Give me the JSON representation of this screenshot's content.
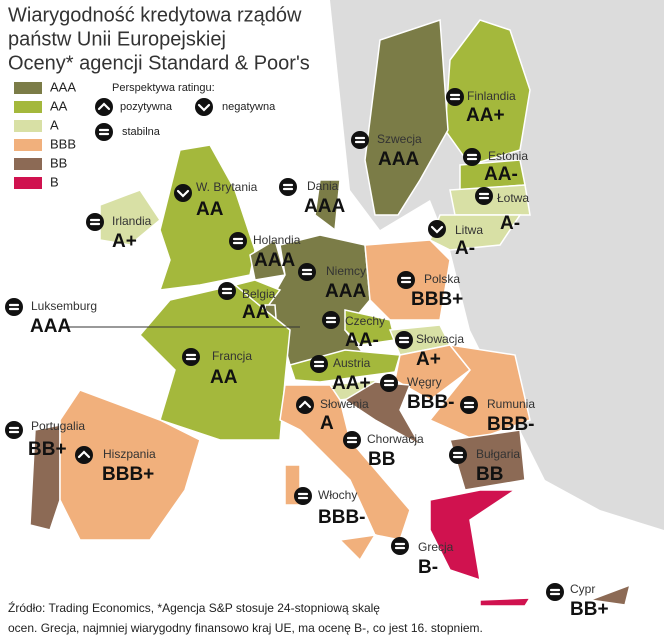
{
  "header": {
    "title": [
      "Wiarygodność kredytowa rządów",
      "państw Unii Europejskiej",
      "Oceny* agencji Standard & Poor's"
    ]
  },
  "legend": {
    "ratings": [
      {
        "label": "AAA",
        "color": "#7b7c47"
      },
      {
        "label": "AA",
        "color": "#a4b83c"
      },
      {
        "label": "A",
        "color": "#d8e0a5"
      },
      {
        "label": "BBB",
        "color": "#f1b07c"
      },
      {
        "label": "BB",
        "color": "#8c6a55"
      },
      {
        "label": "B",
        "color": "#d0124f"
      }
    ],
    "outlook": {
      "title": "Perspektywa ratingu:",
      "positive": "pozytywna",
      "negative": "negatywna",
      "stable": "stabilna"
    }
  },
  "countries": [
    {
      "name": "Finlandia",
      "rating": "AA+",
      "outlook": "stable"
    },
    {
      "name": "Szwecja",
      "rating": "AAA",
      "outlook": "stable"
    },
    {
      "name": "Estonia",
      "rating": "AA-",
      "outlook": "stable"
    },
    {
      "name": "Łotwa",
      "rating": "A-",
      "outlook": "stable"
    },
    {
      "name": "Litwa",
      "rating": "A-",
      "outlook": "negative"
    },
    {
      "name": "Irlandia",
      "rating": "A+",
      "outlook": "stable"
    },
    {
      "name": "W. Brytania",
      "rating": "AA",
      "outlook": "negative"
    },
    {
      "name": "Dania",
      "rating": "AAA",
      "outlook": "stable"
    },
    {
      "name": "Holandia",
      "rating": "AAA",
      "outlook": "stable"
    },
    {
      "name": "Niemcy",
      "rating": "AAA",
      "outlook": "stable"
    },
    {
      "name": "Polska",
      "rating": "BBB+",
      "outlook": "stable"
    },
    {
      "name": "Belgia",
      "rating": "AA",
      "outlook": "stable"
    },
    {
      "name": "Luksemburg",
      "rating": "AAA",
      "outlook": "stable"
    },
    {
      "name": "Czechy",
      "rating": "AA-",
      "outlook": "stable"
    },
    {
      "name": "Słowacja",
      "rating": "A+",
      "outlook": "stable"
    },
    {
      "name": "Francja",
      "rating": "AA",
      "outlook": "stable"
    },
    {
      "name": "Austria",
      "rating": "AA+",
      "outlook": "stable"
    },
    {
      "name": "Węgry",
      "rating": "BBB-",
      "outlook": "stable"
    },
    {
      "name": "Rumunia",
      "rating": "BBB-",
      "outlook": "stable"
    },
    {
      "name": "Słowenia",
      "rating": "A",
      "outlook": "positive"
    },
    {
      "name": "Portugalia",
      "rating": "BB+",
      "outlook": "stable"
    },
    {
      "name": "Hiszpania",
      "rating": "BBB+",
      "outlook": "positive"
    },
    {
      "name": "Chorwacja",
      "rating": "BB",
      "outlook": "stable"
    },
    {
      "name": "Bułgaria",
      "rating": "BB",
      "outlook": "stable"
    },
    {
      "name": "Włochy",
      "rating": "BBB-",
      "outlook": "stable"
    },
    {
      "name": "Grecja",
      "rating": "B-",
      "outlook": "stable"
    },
    {
      "name": "Cypr",
      "rating": "BB+",
      "outlook": "stable"
    }
  ],
  "footer": [
    "Źródło: Trading Economics, *Agencja S&P stosuje 24-stopniową skalę",
    "ocen. Grecja, najmniej wiarygodny finansowo kraj UE, ma ocenę B-, co jest 16. stopniem."
  ]
}
